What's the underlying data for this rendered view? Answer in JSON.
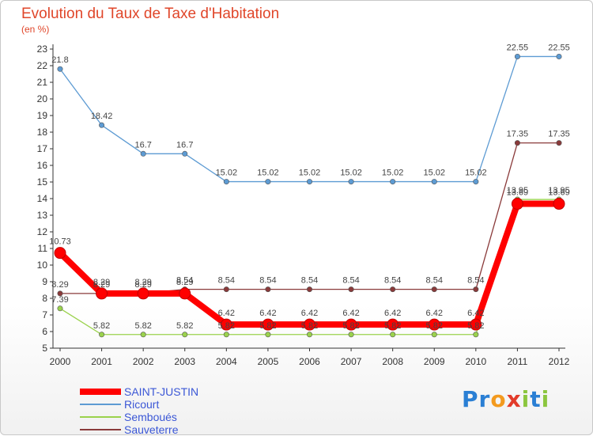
{
  "header": {
    "title": "Evolution du Taux de Taxe d'Habitation",
    "subtitle": "(en %)"
  },
  "logo": {
    "text": "Proxiti",
    "letters": [
      {
        "ch": "P",
        "color": "#2a7fd4"
      },
      {
        "ch": "r",
        "color": "#2a7fd4"
      },
      {
        "ch": "o",
        "color": "#f39a1e"
      },
      {
        "ch": "x",
        "color": "#e23b2a"
      },
      {
        "ch": "i",
        "color": "#8cc63f"
      },
      {
        "ch": "t",
        "color": "#2a7fd4"
      },
      {
        "ch": "i",
        "color": "#8cc63f"
      }
    ]
  },
  "chart_data": {
    "type": "line",
    "title": "Evolution du Taux de Taxe d'Habitation",
    "ylabel": "(en %)",
    "xlabel": "",
    "x": [
      "2000",
      "2001",
      "2002",
      "2003",
      "2004",
      "2005",
      "2006",
      "2007",
      "2008",
      "2009",
      "2010",
      "2011",
      "2012"
    ],
    "ylim": [
      5,
      23
    ],
    "yticks": [
      5,
      6,
      7,
      8,
      9,
      10,
      11,
      12,
      13,
      14,
      15,
      16,
      17,
      18,
      19,
      20,
      21,
      22,
      23
    ],
    "grid": false,
    "legend_position": "bottom-left",
    "series": [
      {
        "name": "SAINT-JUSTIN",
        "color": "#ff0000",
        "values": [
          10.73,
          8.29,
          8.29,
          8.29,
          6.42,
          6.42,
          6.42,
          6.42,
          6.42,
          6.42,
          6.42,
          13.69,
          13.69
        ],
        "labels": [
          "10.73",
          "8.29",
          "8.29",
          "8.29",
          "6.42",
          "6.42",
          "6.42",
          "6.42",
          "6.42",
          "6.42",
          "6.42",
          "13.69",
          "13.69"
        ]
      },
      {
        "name": "Ricourt",
        "color": "#5d9bd3",
        "values": [
          21.8,
          18.42,
          16.7,
          16.7,
          15.02,
          15.02,
          15.02,
          15.02,
          15.02,
          15.02,
          15.02,
          22.55,
          22.55
        ],
        "labels": [
          "21.8",
          "18.42",
          "16.7",
          "16.7",
          "15.02",
          "15.02",
          "15.02",
          "15.02",
          "15.02",
          "15.02",
          "15.02",
          "22.55",
          "22.55"
        ]
      },
      {
        "name": "Semboues",
        "legend": "Semboués",
        "color": "#9ad24c",
        "values": [
          7.39,
          5.82,
          5.82,
          5.82,
          5.82,
          5.82,
          5.82,
          5.82,
          5.82,
          5.82,
          5.82,
          13.95,
          13.95
        ],
        "labels": [
          "7.39",
          "5.82",
          "5.82",
          "5.82",
          "5.82",
          "5.82",
          "5.82",
          "5.82",
          "5.82",
          "5.82",
          "5.82",
          "13.95",
          "13.95"
        ]
      },
      {
        "name": "Sauveterre",
        "color": "#8a3a3a",
        "values": [
          8.29,
          8.29,
          8.29,
          8.54,
          8.54,
          8.54,
          8.54,
          8.54,
          8.54,
          8.54,
          8.54,
          17.35,
          17.35
        ],
        "labels": [
          "8.29",
          "8.29",
          "8.29",
          "8.54",
          "8.54",
          "8.54",
          "8.54",
          "8.54",
          "8.54",
          "8.54",
          "8.54",
          "17.35",
          "17.35"
        ]
      }
    ]
  }
}
